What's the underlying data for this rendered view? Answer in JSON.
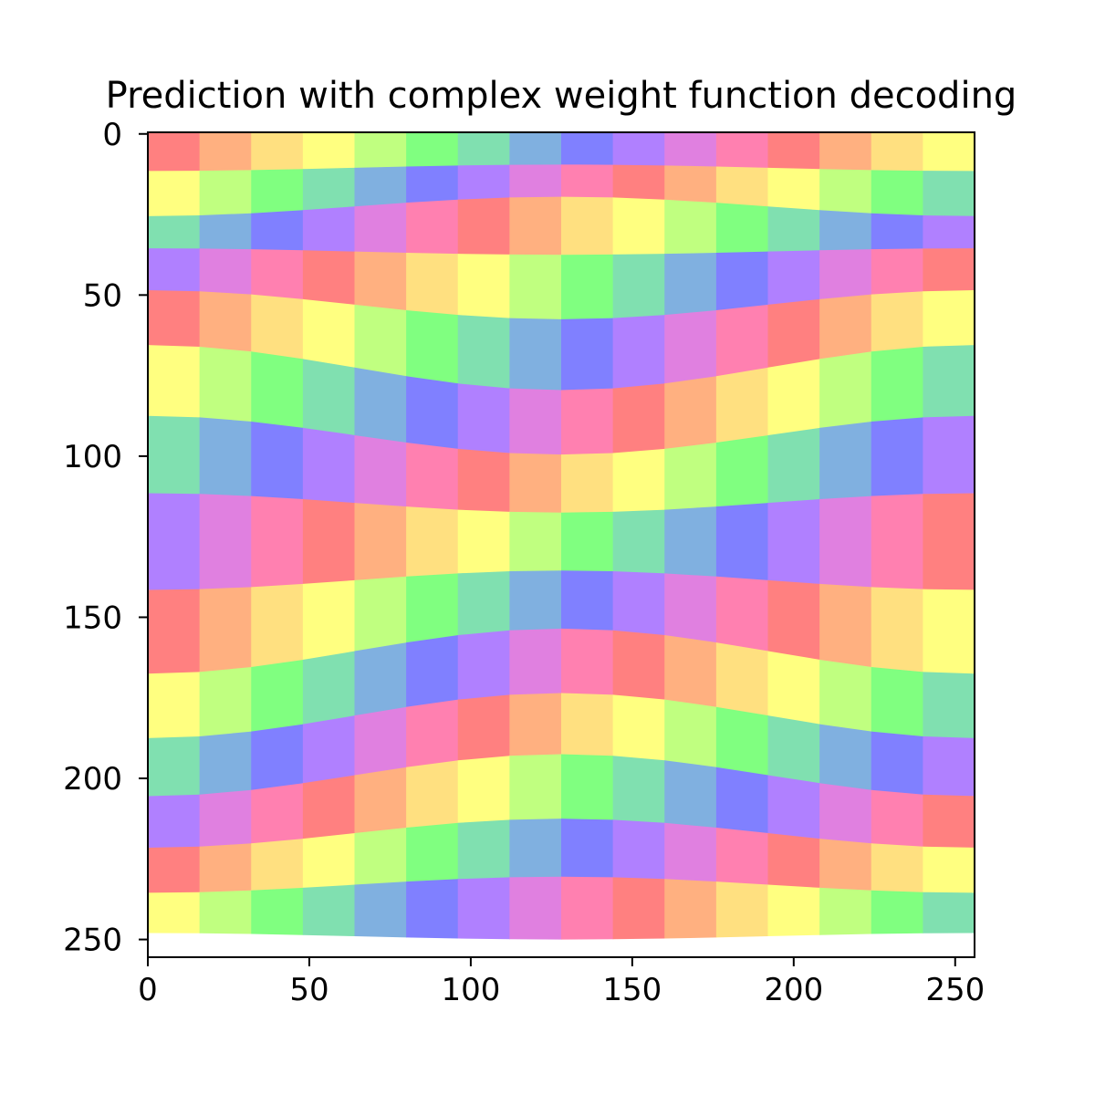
{
  "chart_data": {
    "type": "heatmap",
    "title": "Prediction with complex weight function decoding",
    "xlabel": "",
    "ylabel": "",
    "xlim": [
      0,
      255
    ],
    "ylim": [
      255,
      0
    ],
    "x_ticks": [
      "0",
      "50",
      "100",
      "150",
      "200",
      "250"
    ],
    "y_ticks": [
      "0",
      "50",
      "100",
      "150",
      "200",
      "250"
    ],
    "grid": false,
    "legend": "none",
    "colormap": "hsv (cyclic phase, pastel)",
    "image_size": [
      256,
      256
    ],
    "stripe_count": 14,
    "stripe_boundary_center_rows": [
      0,
      10,
      20,
      38,
      58,
      80,
      100,
      118,
      136,
      154,
      174,
      193,
      213,
      231,
      250
    ],
    "stripe_boundary_edge_rows": [
      0,
      12,
      26,
      36,
      49,
      66,
      88,
      112,
      142,
      168,
      188,
      206,
      222,
      236,
      248
    ],
    "colors": [
      "#ff8080",
      "#ffb080",
      "#ffe080",
      "#ffff80",
      "#c0ff80",
      "#80ff80",
      "#80e0b0",
      "#80b0e0",
      "#8080ff",
      "#b080ff",
      "#e080e0",
      "#ff80b0"
    ]
  }
}
